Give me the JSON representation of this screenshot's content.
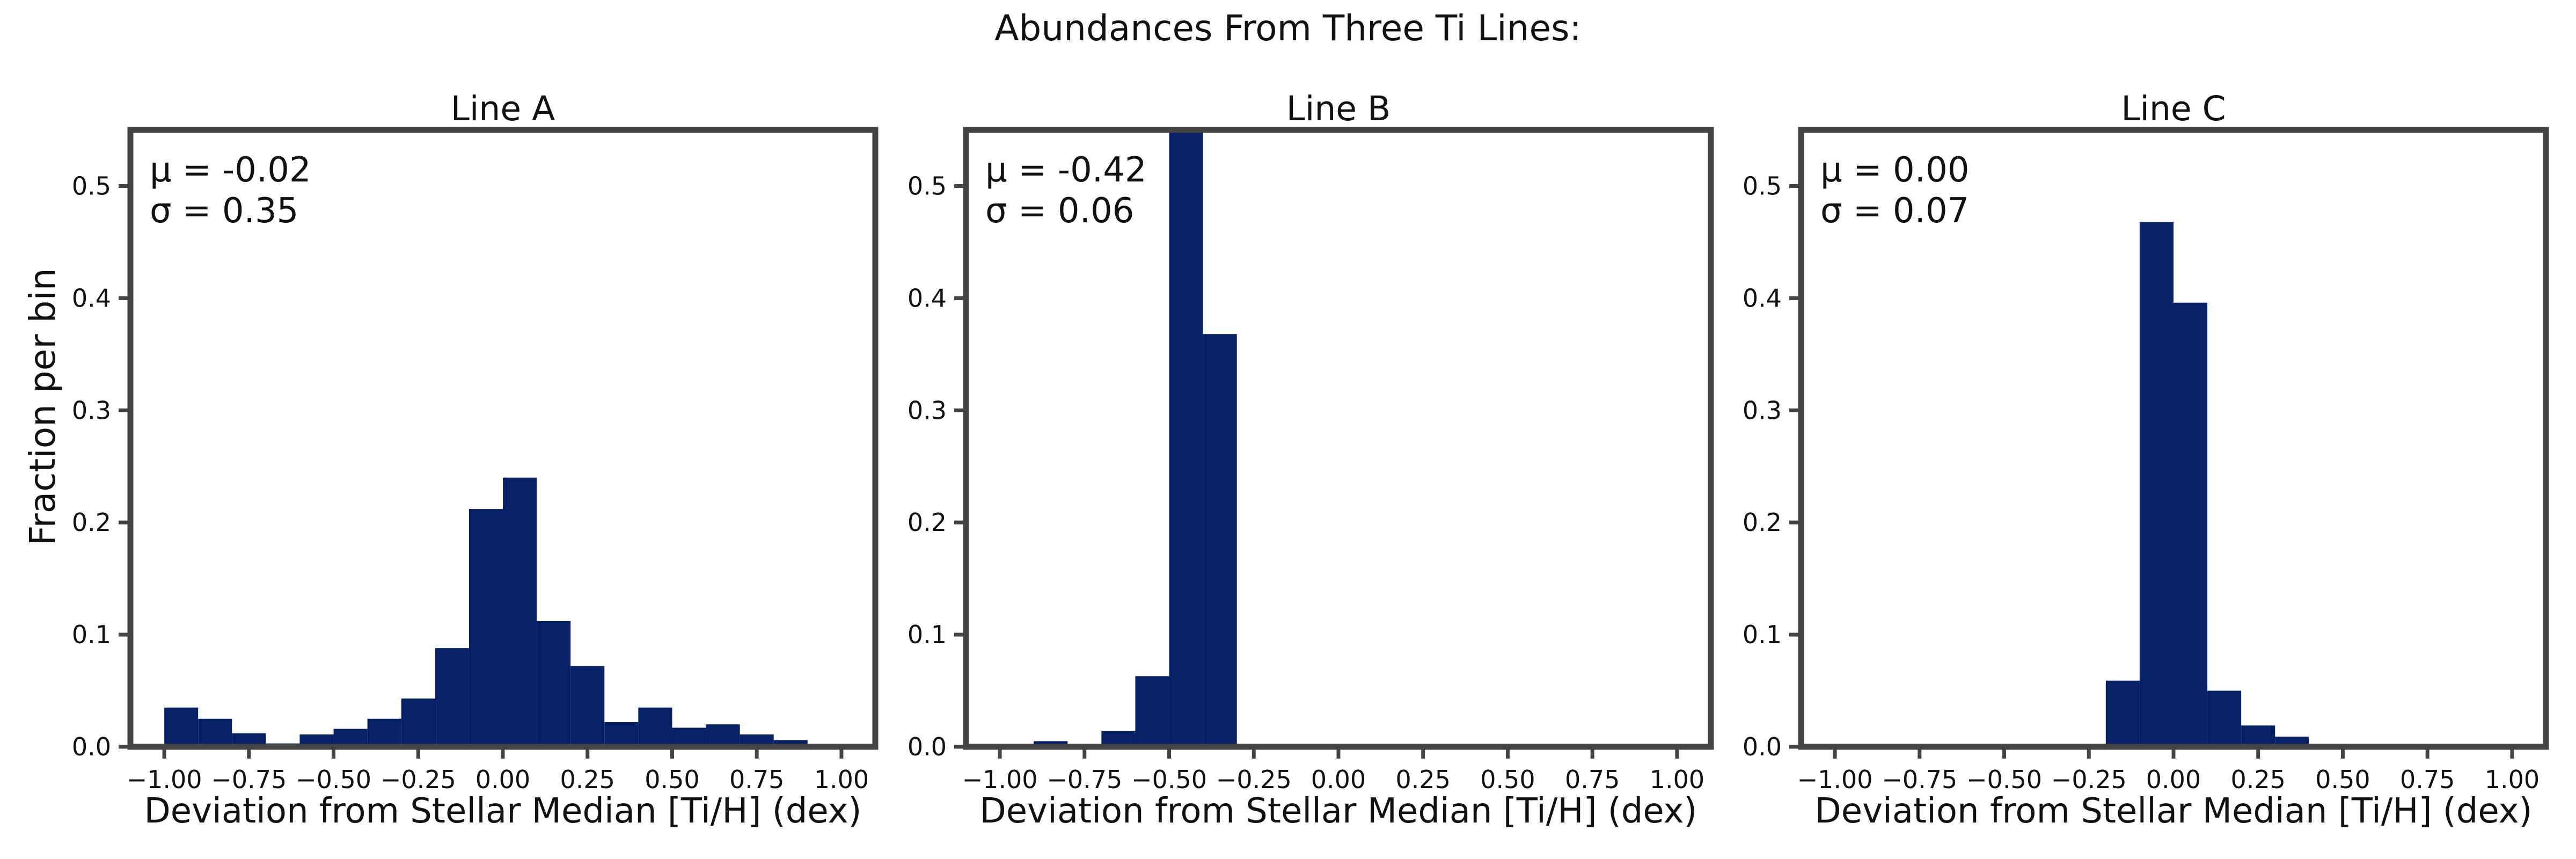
{
  "title": "Abundances From Three Ti Lines:",
  "ylabel": "Fraction per bin",
  "colors": {
    "bar": "#062066",
    "frame": "#444444",
    "text": "#111111"
  },
  "chart_data": [
    {
      "type": "bar",
      "title": "Line A",
      "xlabel": "Deviation from Stellar Median [Ti/H] (dex)",
      "ylabel": "Fraction per bin",
      "annotation": {
        "mu": "μ = -0.02",
        "sigma": "σ = 0.35"
      },
      "xlim": [
        -1.1,
        1.1
      ],
      "ylim": [
        0,
        0.55
      ],
      "xticks": [
        "−1.00",
        "−0.75",
        "−0.50",
        "−0.25",
        "0.00",
        "0.25",
        "0.50",
        "0.75",
        "1.00"
      ],
      "yticks": [
        "0.0",
        "0.1",
        "0.2",
        "0.3",
        "0.4",
        "0.5"
      ],
      "bins": [
        [
          -1.0,
          -0.9,
          0.035
        ],
        [
          -0.9,
          -0.8,
          0.025
        ],
        [
          -0.8,
          -0.7,
          0.012
        ],
        [
          -0.7,
          -0.6,
          0.003
        ],
        [
          -0.6,
          -0.5,
          0.011
        ],
        [
          -0.5,
          -0.4,
          0.016
        ],
        [
          -0.4,
          -0.3,
          0.025
        ],
        [
          -0.3,
          -0.2,
          0.043
        ],
        [
          -0.2,
          -0.1,
          0.088
        ],
        [
          -0.1,
          0.0,
          0.212
        ],
        [
          0.0,
          0.1,
          0.24
        ],
        [
          0.1,
          0.2,
          0.112
        ],
        [
          0.2,
          0.3,
          0.072
        ],
        [
          0.3,
          0.4,
          0.022
        ],
        [
          0.4,
          0.5,
          0.035
        ],
        [
          0.5,
          0.6,
          0.017
        ],
        [
          0.6,
          0.7,
          0.02
        ],
        [
          0.7,
          0.8,
          0.011
        ],
        [
          0.8,
          0.9,
          0.006
        ],
        [
          0.9,
          1.0,
          0.002
        ]
      ]
    },
    {
      "type": "bar",
      "title": "Line B",
      "xlabel": "Deviation from Stellar Median [Ti/H] (dex)",
      "ylabel": "",
      "annotation": {
        "mu": "μ = -0.42",
        "sigma": "σ = 0.06"
      },
      "xlim": [
        -1.1,
        1.1
      ],
      "ylim": [
        0,
        0.55
      ],
      "xticks": [
        "−1.00",
        "−0.75",
        "−0.50",
        "−0.25",
        "0.00",
        "0.25",
        "0.50",
        "0.75",
        "1.00"
      ],
      "yticks": [
        "0.0",
        "0.1",
        "0.2",
        "0.3",
        "0.4",
        "0.5"
      ],
      "bins": [
        [
          -1.0,
          -0.9,
          0.001
        ],
        [
          -0.9,
          -0.8,
          0.005
        ],
        [
          -0.8,
          -0.7,
          0.002
        ],
        [
          -0.7,
          -0.6,
          0.014
        ],
        [
          -0.6,
          -0.5,
          0.063
        ],
        [
          -0.5,
          -0.4,
          0.55
        ],
        [
          -0.4,
          -0.3,
          0.368
        ],
        [
          -0.3,
          -0.2,
          0.002
        ]
      ]
    },
    {
      "type": "bar",
      "title": "Line C",
      "xlabel": "Deviation from Stellar Median [Ti/H] (dex)",
      "ylabel": "",
      "annotation": {
        "mu": "μ = 0.00",
        "sigma": "σ = 0.07"
      },
      "xlim": [
        -1.1,
        1.1
      ],
      "ylim": [
        0,
        0.55
      ],
      "xticks": [
        "−1.00",
        "−0.75",
        "−0.50",
        "−0.25",
        "0.00",
        "0.25",
        "0.50",
        "0.75",
        "1.00"
      ],
      "yticks": [
        "0.0",
        "0.1",
        "0.2",
        "0.3",
        "0.4",
        "0.5"
      ],
      "bins": [
        [
          -0.2,
          -0.1,
          0.059
        ],
        [
          -0.1,
          0.0,
          0.468
        ],
        [
          0.0,
          0.1,
          0.396
        ],
        [
          0.1,
          0.2,
          0.05
        ],
        [
          0.2,
          0.3,
          0.019
        ],
        [
          0.3,
          0.4,
          0.009
        ]
      ]
    }
  ]
}
